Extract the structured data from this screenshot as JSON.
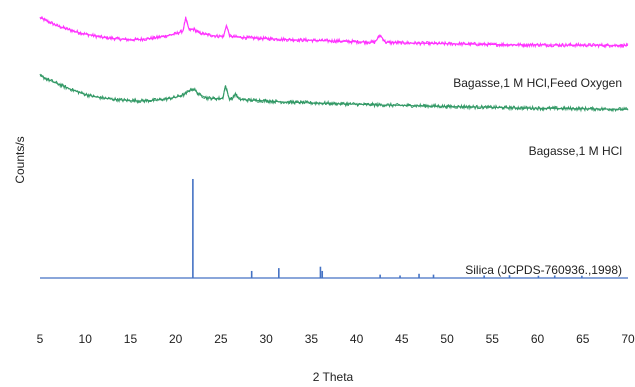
{
  "chart_data": {
    "type": "line",
    "title": "",
    "xlabel": "2 Theta",
    "ylabel": "Counts/s",
    "xlim": [
      5,
      70
    ],
    "xticks": [
      5,
      10,
      15,
      20,
      25,
      30,
      35,
      40,
      45,
      50,
      55,
      60,
      65,
      70
    ],
    "xtick_labels": [
      "5",
      "10",
      "15",
      "20",
      "25",
      "30",
      "35",
      "40",
      "45",
      "50",
      "55",
      "60",
      "65",
      "70"
    ],
    "ylim": [
      0,
      100
    ],
    "grid": false,
    "legend": "none",
    "series": [
      {
        "name": "Bagasse,1 M HCl,Feed Oxygen",
        "color": "#ff33ff",
        "x": [
          5,
          6,
          7,
          8,
          9,
          10,
          11,
          12,
          13,
          14,
          15,
          16,
          17,
          18,
          19,
          20,
          20.8,
          21.1,
          21.5,
          22.0,
          22.6,
          23.5,
          24.5,
          25.3,
          25.6,
          26.0,
          27,
          28,
          30,
          32,
          35,
          38,
          40,
          42,
          42.6,
          43.2,
          45,
          48,
          50,
          52,
          55,
          58,
          60,
          63,
          65,
          68,
          70
        ],
        "y": [
          98.0,
          96.5,
          95.0,
          94.0,
          93.0,
          92.2,
          91.6,
          91.0,
          90.7,
          90.4,
          90.2,
          90.3,
          90.6,
          91.0,
          91.6,
          92.3,
          93.3,
          97.8,
          93.6,
          94.0,
          92.6,
          92.0,
          91.5,
          91.4,
          95.3,
          91.4,
          91.1,
          90.9,
          90.6,
          90.3,
          90.0,
          89.7,
          89.5,
          89.3,
          91.8,
          89.3,
          89.1,
          88.9,
          88.8,
          88.7,
          88.5,
          88.4,
          88.4,
          88.3,
          88.3,
          88.2,
          88.2
        ]
      },
      {
        "name": "Bagasse,1 M HCl",
        "color": "#339966",
        "x": [
          5,
          6,
          7,
          8,
          9,
          10,
          11,
          12,
          13,
          14,
          15,
          16,
          17,
          18,
          19,
          20,
          21,
          21.6,
          22.0,
          22.6,
          23.5,
          24.5,
          25.2,
          25.5,
          25.9,
          26.3,
          26.6,
          27,
          28,
          30,
          32,
          35,
          38,
          40,
          42,
          45,
          48,
          50,
          52,
          55,
          58,
          60,
          63,
          65,
          68,
          70
        ],
        "y": [
          77.5,
          76.0,
          74.6,
          73.2,
          72.0,
          70.9,
          70.1,
          69.6,
          69.2,
          68.9,
          68.7,
          68.6,
          68.7,
          68.9,
          69.3,
          69.9,
          70.9,
          72.5,
          72.8,
          70.8,
          69.6,
          69.4,
          69.5,
          74.0,
          69.5,
          69.4,
          71.2,
          69.2,
          68.9,
          68.6,
          68.2,
          67.9,
          67.6,
          67.4,
          67.2,
          67.0,
          66.8,
          66.6,
          66.5,
          66.3,
          66.1,
          66.0,
          65.9,
          65.8,
          65.7,
          65.6
        ]
      }
    ],
    "stick_series": {
      "name": "Silica (JCPDS-760936.,1998)",
      "color": "#4472c4",
      "baseline": 6,
      "x": [
        21.9,
        28.4,
        31.4,
        36.0,
        36.2,
        42.6,
        44.8,
        46.9,
        48.5,
        54.1,
        56.9,
        60.1,
        61.9,
        64.9
      ],
      "y": [
        41.0,
        8.5,
        9.5,
        10.0,
        8.5,
        7.2,
        6.9,
        7.5,
        7.2,
        6.9,
        7.0,
        6.8,
        6.9,
        6.8
      ]
    }
  }
}
